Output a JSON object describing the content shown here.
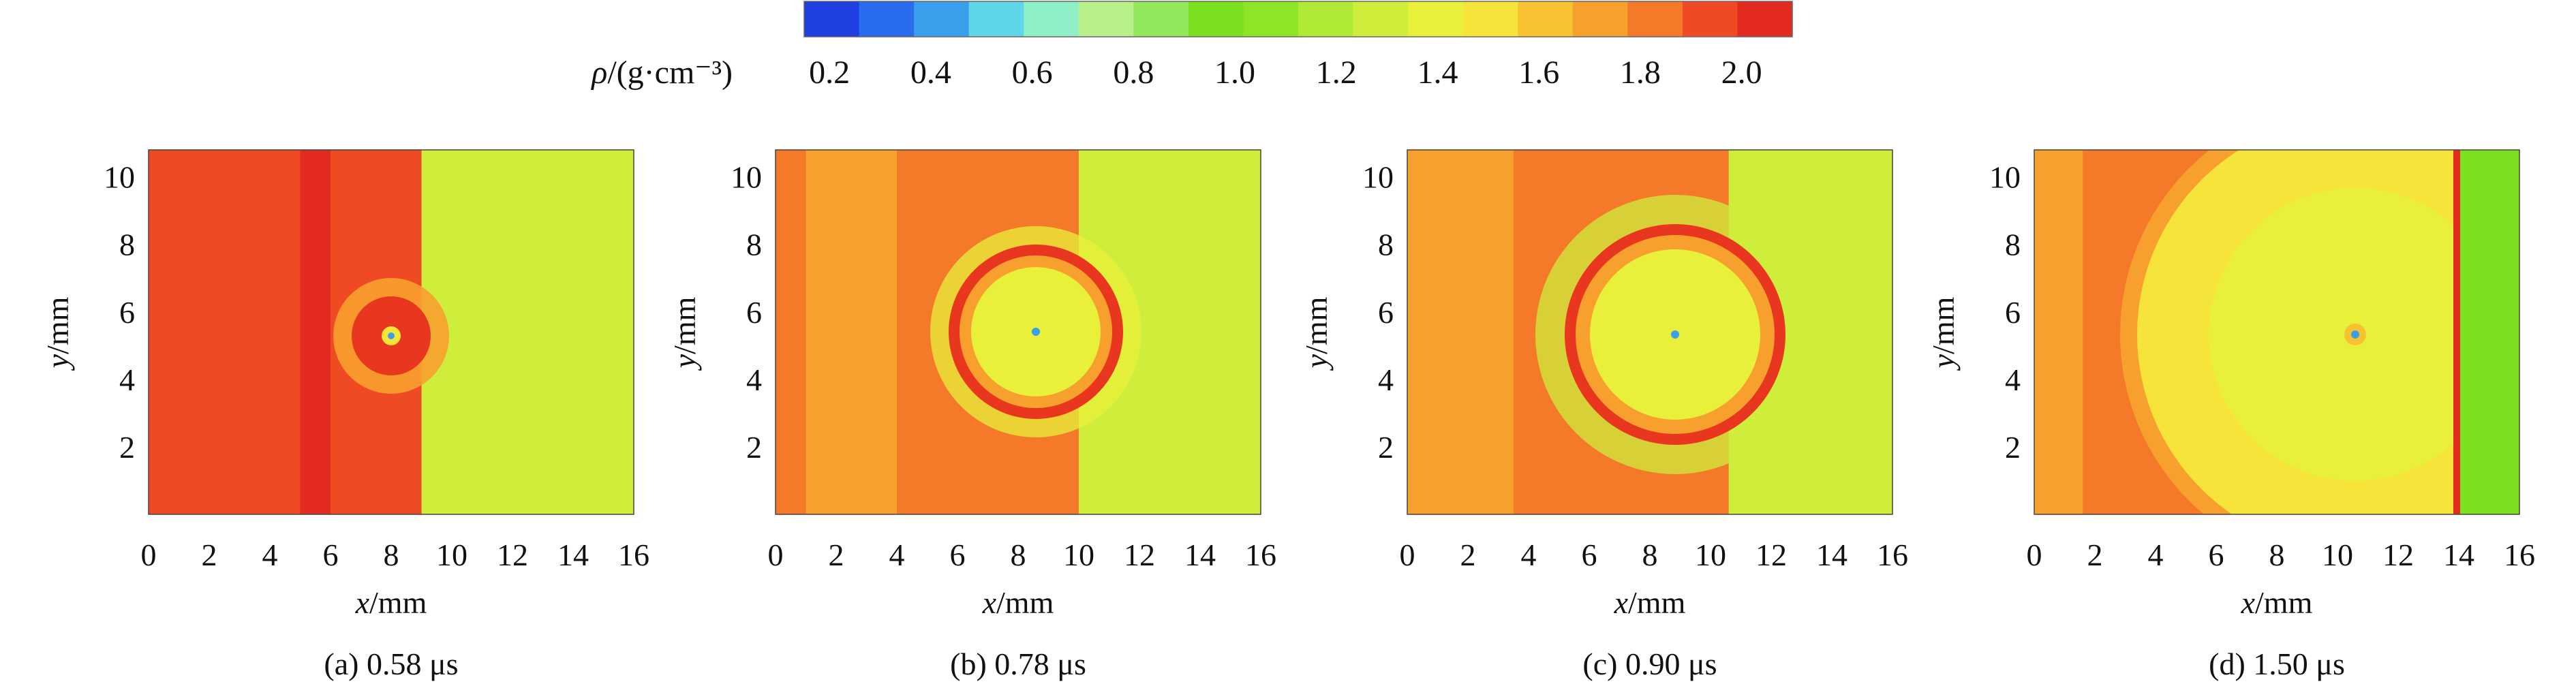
{
  "colorbar": {
    "label_symbol": "ρ",
    "label_unit": "/(g·cm⁻³)",
    "ticks": [
      "0.2",
      "0.4",
      "0.6",
      "0.8",
      "1.0",
      "1.2",
      "1.4",
      "1.6",
      "1.8",
      "2.0"
    ],
    "tick_values": [
      0.2,
      0.4,
      0.6,
      0.8,
      1.0,
      1.2,
      1.4,
      1.6,
      1.8,
      2.0
    ],
    "range": [
      0.15,
      2.1
    ],
    "colors": [
      "#1f3fe0",
      "#2a6cf0",
      "#3aa0ee",
      "#5fd6e8",
      "#8ff0c8",
      "#b8f08a",
      "#90e85a",
      "#7ae020",
      "#8fe428",
      "#b0ea36",
      "#cfee3c",
      "#e8f03a",
      "#f6e43a",
      "#f8c232",
      "#f7a02e",
      "#f47a2a",
      "#ef4a24",
      "#e22a1e"
    ]
  },
  "chart_data": [
    {
      "type": "heatmap",
      "panel": "a",
      "caption_label": "(a)",
      "caption_time": "0.58 μs",
      "xlabel_var": "x",
      "xlabel_unit": "/mm",
      "ylabel_var": "y",
      "ylabel_unit": "/mm",
      "x_ticks": [
        0,
        2,
        4,
        6,
        8,
        10,
        12,
        14,
        16
      ],
      "y_ticks": [
        2,
        4,
        6,
        8,
        10
      ],
      "xlim": [
        0,
        16
      ],
      "ylim": [
        0,
        10.8
      ],
      "shock_front_x": 9.0,
      "bubble_center": [
        8.0,
        5.5
      ],
      "bubble_radius": 1.5,
      "bands": [
        {
          "x0": 0,
          "x1": 1.0,
          "rho": 1.95
        },
        {
          "x0": 1.0,
          "x1": 2.0,
          "rho": 1.92
        },
        {
          "x0": 2.0,
          "x1": 5.0,
          "rho": 1.96
        },
        {
          "x0": 5.0,
          "x1": 6.0,
          "rho": 2.02
        },
        {
          "x0": 6.0,
          "x1": 9.0,
          "rho": 1.98
        },
        {
          "x0": 9.0,
          "x1": 16,
          "rho": 1.28
        }
      ]
    },
    {
      "type": "heatmap",
      "panel": "b",
      "caption_label": "(b)",
      "caption_time": "0.78 μs",
      "xlabel_var": "x",
      "xlabel_unit": "/mm",
      "ylabel_var": "y",
      "ylabel_unit": "/mm",
      "x_ticks": [
        0,
        2,
        4,
        6,
        8,
        10,
        12,
        14,
        16
      ],
      "y_ticks": [
        2,
        4,
        6,
        8,
        10
      ],
      "xlim": [
        0,
        16
      ],
      "ylim": [
        0,
        10.8
      ],
      "shock_front_x": 10.0,
      "bubble_center": [
        8.6,
        5.4
      ],
      "bubble_radius": 2.6,
      "bands": [
        {
          "x0": 0,
          "x1": 1.0,
          "rho": 1.85
        },
        {
          "x0": 1.0,
          "x1": 4.0,
          "rho": 1.7
        },
        {
          "x0": 4.0,
          "x1": 10.0,
          "rho": 1.82
        },
        {
          "x0": 10.0,
          "x1": 16,
          "rho": 1.28
        }
      ]
    },
    {
      "type": "heatmap",
      "panel": "c",
      "caption_label": "(c)",
      "caption_time": "0.90 μs",
      "xlabel_var": "x",
      "xlabel_unit": "/mm",
      "ylabel_var": "y",
      "ylabel_unit": "/mm",
      "x_ticks": [
        0,
        2,
        4,
        6,
        8,
        10,
        12,
        14,
        16
      ],
      "y_ticks": [
        2,
        4,
        6,
        8,
        10
      ],
      "xlim": [
        0,
        16
      ],
      "ylim": [
        0,
        10.8
      ],
      "shock_front_x": 10.6,
      "bubble_center": [
        8.8,
        5.3
      ],
      "bubble_radius": 3.3,
      "bands": [
        {
          "x0": 0,
          "x1": 1.0,
          "rho": 1.75
        },
        {
          "x0": 1.0,
          "x1": 3.5,
          "rho": 1.68
        },
        {
          "x0": 3.5,
          "x1": 10.6,
          "rho": 1.78
        },
        {
          "x0": 10.6,
          "x1": 16,
          "rho": 1.28
        }
      ]
    },
    {
      "type": "heatmap",
      "panel": "d",
      "caption_label": "(d)",
      "caption_time": "1.50 μs",
      "xlabel_var": "x",
      "xlabel_unit": "/mm",
      "ylabel_var": "y",
      "ylabel_unit": "/mm",
      "x_ticks": [
        0,
        2,
        4,
        6,
        8,
        10,
        12,
        14,
        16
      ],
      "y_ticks": [
        2,
        4,
        6,
        8,
        10
      ],
      "xlim": [
        0,
        16
      ],
      "ylim": [
        0,
        10.8
      ],
      "shock_front_x": 14.0,
      "bubble_center": [
        10.6,
        5.3
      ],
      "bubble_radius": 7.8,
      "bands": [
        {
          "x0": 0,
          "x1": 1.6,
          "rho": 1.7
        },
        {
          "x0": 1.6,
          "x1": 14.0,
          "rho": 1.82
        },
        {
          "x0": 14.0,
          "x1": 16,
          "rho": 1.28
        }
      ]
    }
  ]
}
